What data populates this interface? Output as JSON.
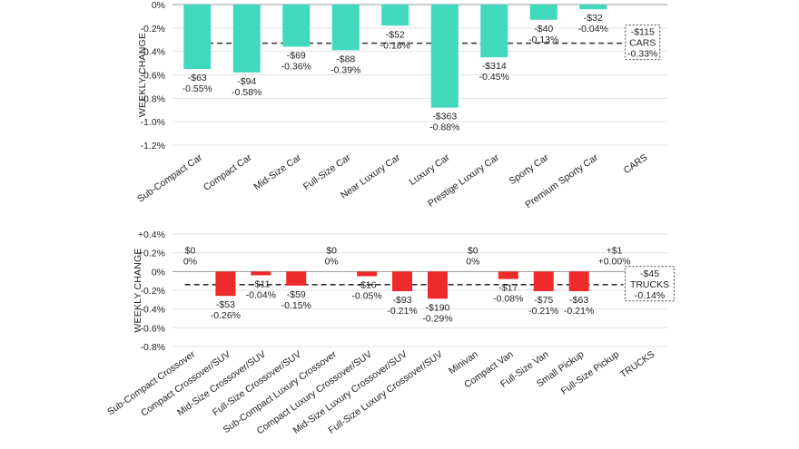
{
  "chart_data": [
    {
      "type": "bar",
      "title": "",
      "xlabel": "",
      "ylabel": "WEEKLY CHANGE",
      "ylim": [
        -1.2,
        0
      ],
      "yticks": [
        0,
        -0.2,
        -0.4,
        -0.6,
        -0.8,
        -1.0,
        -1.2
      ],
      "ytick_labels": [
        "0%",
        "-0.2%",
        "-0.4%",
        "-0.6%",
        "-0.8%",
        "-1.0%",
        "-1.2%"
      ],
      "grid": true,
      "bar_color": "#40d9bd",
      "categories": [
        "Sub-Compact Car",
        "Compact Car",
        "Mid-Size Car",
        "Full-Size Car",
        "Near Luxury Car",
        "Luxury Car",
        "Prestige Luxury Car",
        "Sporty Car",
        "Premium Sporty Car",
        "CARS"
      ],
      "series": [
        {
          "name": "Weekly change (%)",
          "values": [
            -0.55,
            -0.58,
            -0.36,
            -0.39,
            -0.18,
            -0.88,
            -0.45,
            -0.13,
            -0.04,
            null
          ],
          "dollar_labels": [
            "-$63",
            "-$94",
            "-$69",
            "-$88",
            "-$52",
            "-$363",
            "-$314",
            "-$40",
            "-$32",
            null
          ],
          "pct_labels": [
            "-0.55%",
            "-0.58%",
            "-0.36%",
            "-0.39%",
            "-0.18%",
            "-0.88%",
            "-0.45%",
            "-0.13%",
            "-0.04%",
            null
          ]
        }
      ],
      "average_line": {
        "value": -0.33,
        "style": "dashed"
      },
      "summary_box": {
        "lines": [
          "-$115",
          "CARS",
          "-0.33%"
        ]
      }
    },
    {
      "type": "bar",
      "title": "",
      "xlabel": "",
      "ylabel": "WEEKLY CHANGE",
      "ylim": [
        -0.8,
        0.4
      ],
      "yticks": [
        0.4,
        0.2,
        0,
        -0.2,
        -0.4,
        -0.6,
        -0.8
      ],
      "ytick_labels": [
        "+0.4%",
        "+0.2%",
        "0%",
        "-0.2%",
        "-0.4%",
        "-0.6%",
        "-0.8%"
      ],
      "grid": true,
      "bar_color": "#ee2a2a",
      "categories": [
        "Sub-Compact Crossover",
        "Compact Crossover/SUV",
        "Mid-Size Crossover/SUV",
        "Full-Size Crossover/SUV",
        "Sub-Compact Luxury Crossover",
        "Compact Luxury Crossover/SUV",
        "Mid-Size Luxury Crossover/SUV",
        "Full-Size Luxury Crossover/SUV",
        "Minivan",
        "Compact Van",
        "Full-Size Van",
        "Small Pickup",
        "Full-Size Pickup",
        "TRUCKS"
      ],
      "series": [
        {
          "name": "Weekly change (%)",
          "values": [
            0,
            -0.26,
            -0.04,
            -0.15,
            0,
            -0.05,
            -0.21,
            -0.29,
            0,
            -0.08,
            -0.21,
            -0.21,
            0.0,
            null
          ],
          "dollar_labels": [
            "$0",
            "-$53",
            "-$11",
            "-$59",
            "$0",
            "-$16",
            "-$93",
            "-$190",
            "$0",
            "-$17",
            "-$75",
            "-$63",
            "+$1",
            null
          ],
          "pct_labels": [
            "0%",
            "-0.26%",
            "-0.04%",
            "-0.15%",
            "0%",
            "-0.05%",
            "-0.21%",
            "-0.29%",
            "0%",
            "-0.08%",
            "-0.21%",
            "-0.21%",
            "+0.00%",
            null
          ]
        }
      ],
      "average_line": {
        "value": -0.14,
        "style": "dashed"
      },
      "summary_box": {
        "lines": [
          "-$45",
          "TRUCKS",
          "-0.14%"
        ]
      }
    }
  ]
}
